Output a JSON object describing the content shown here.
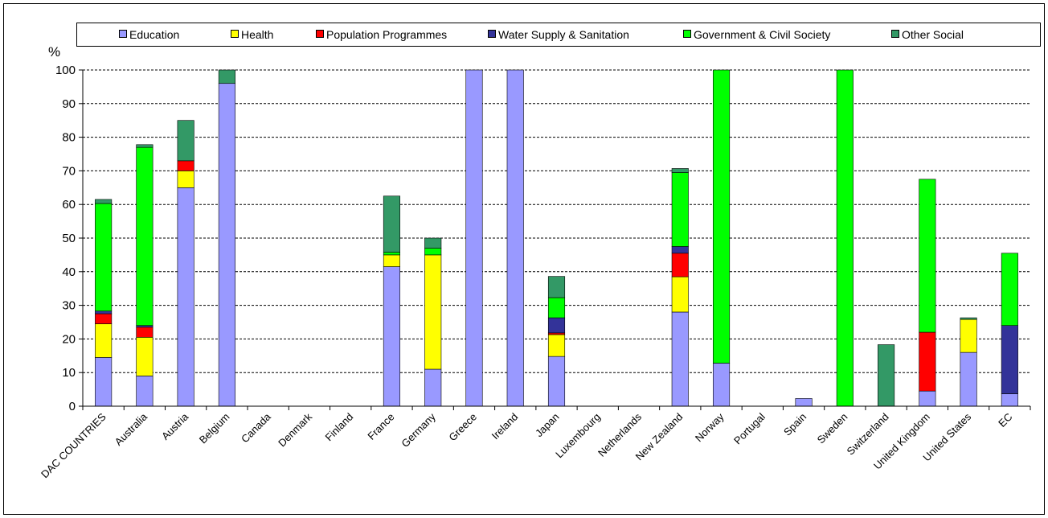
{
  "chart_data": {
    "type": "bar",
    "stacked": true,
    "ylabel": "%",
    "ylim": [
      0,
      100
    ],
    "y_ticks": [
      "0",
      "10",
      "20",
      "30",
      "40",
      "50",
      "60",
      "70",
      "80",
      "90",
      "100"
    ],
    "grid": "horizontal dashed",
    "legend_position": "top",
    "categories": [
      "DAC COUNTRIES",
      "Australia",
      "Austria",
      "Belgium",
      "Canada",
      "Denmark",
      "Finland",
      "France",
      "Germany",
      "Greece",
      "Ireland",
      "Japan",
      "Luxembourg",
      "Netherlands",
      "New Zealand",
      "Norway",
      "Portugal",
      "Spain",
      "Sweden",
      "Switzerland",
      "United Kingdom",
      "United States",
      "EC"
    ],
    "series": [
      {
        "name": "Education",
        "color": "#9999ff",
        "values": [
          14.5,
          9,
          65,
          96,
          0,
          0,
          0,
          41.5,
          11,
          100,
          100,
          14.8,
          0,
          0,
          28,
          12.8,
          0,
          2.3,
          0,
          0,
          4.5,
          16,
          3.7
        ]
      },
      {
        "name": "Health",
        "color": "#ffff00",
        "values": [
          10,
          11.5,
          5,
          0,
          0,
          0,
          0,
          3.5,
          34,
          0,
          0,
          6.5,
          0,
          0,
          10.5,
          0,
          0,
          0,
          0,
          0,
          0,
          9.8,
          0
        ]
      },
      {
        "name": "Population Programmes",
        "color": "#ff0000",
        "values": [
          3,
          3,
          3,
          0,
          0,
          0,
          0,
          0,
          0,
          0,
          0,
          0.5,
          0,
          0,
          7,
          0,
          0,
          0,
          0,
          0,
          17.5,
          0,
          0
        ]
      },
      {
        "name": "Water Supply & Sanitation",
        "color": "#333399",
        "values": [
          0.8,
          0.5,
          0,
          0,
          0,
          0,
          0,
          0,
          0,
          0,
          0,
          4.5,
          0,
          0,
          2,
          0,
          0,
          0,
          0,
          0,
          0,
          0,
          20.3
        ]
      },
      {
        "name": "Government & Civil Society",
        "color": "#00ff00",
        "values": [
          32,
          53,
          0,
          0,
          0,
          0,
          0,
          0.8,
          2,
          0,
          0,
          6,
          0,
          0,
          22,
          87.2,
          0,
          0,
          100,
          0,
          45.5,
          0,
          21.5
        ]
      },
      {
        "name": "Other Social",
        "color": "#339966",
        "values": [
          1.2,
          0.8,
          12,
          4,
          0,
          0,
          0,
          16.7,
          3,
          0,
          0,
          6.3,
          0,
          0,
          1.2,
          0,
          0,
          0,
          0,
          18.3,
          0,
          0.5,
          0
        ]
      }
    ]
  }
}
